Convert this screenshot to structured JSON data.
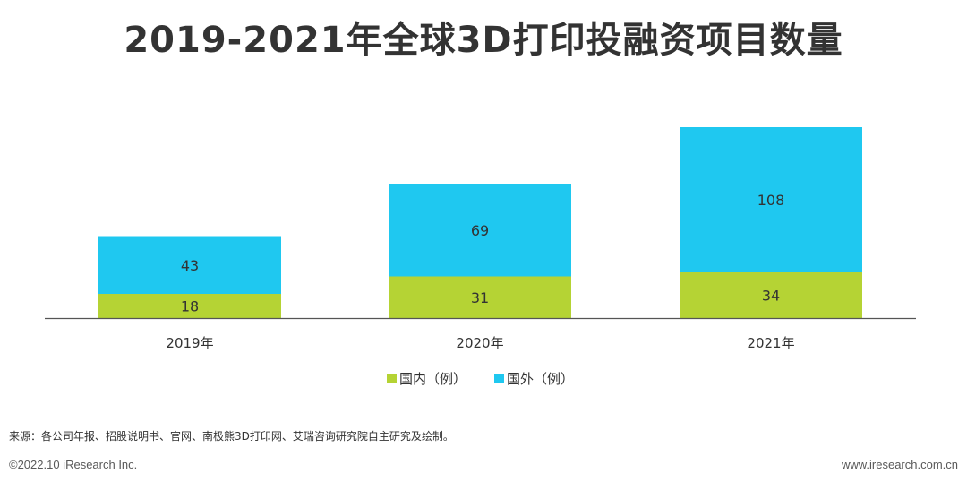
{
  "title": "2019-2021年全球3D打印投融资项目数量",
  "colors": {
    "domestic": "#B5D334",
    "foreign": "#1FC8F0",
    "axis": "#555555",
    "text": "#333333"
  },
  "chart_data": {
    "type": "bar",
    "stacked": true,
    "categories": [
      "2019年",
      "2020年",
      "2021年"
    ],
    "series": [
      {
        "name": "国内（例）",
        "values": [
          18,
          31,
          34
        ]
      },
      {
        "name": "国外（例）",
        "values": [
          43,
          69,
          108
        ]
      }
    ],
    "legend": "bottom",
    "grid": false
  },
  "footer": {
    "source": "来源：各公司年报、招股说明书、官网、南极熊3D打印网、艾瑞咨询研究院自主研究及绘制。",
    "copyright": "©2022.10 iResearch Inc.",
    "website": "www.iresearch.com.cn"
  }
}
